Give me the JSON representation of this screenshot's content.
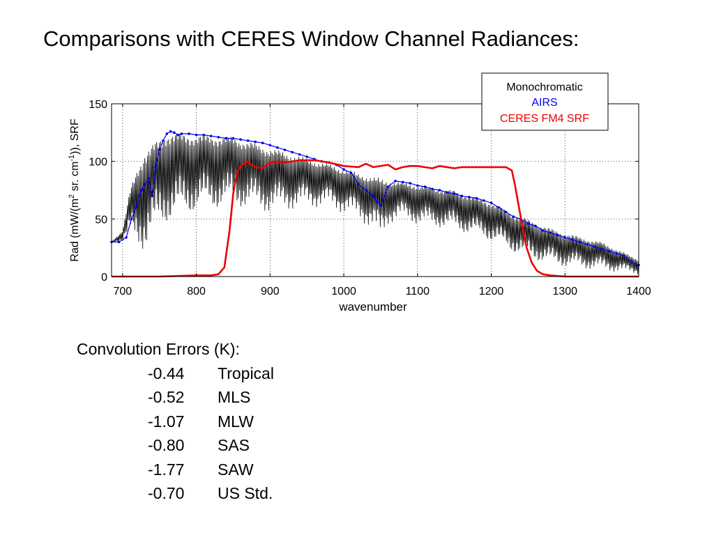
{
  "slide_title": "Comparisons with CERES Window Channel Radiances:",
  "chart_data": {
    "type": "line",
    "title": "",
    "xlabel": "wavenumber",
    "ylabel": "Rad (mW/(m² sr. cm⁻¹)), SRF",
    "xlim": [
      685,
      1400
    ],
    "ylim": [
      0,
      150
    ],
    "xticks": [
      700,
      800,
      900,
      1000,
      1100,
      1200,
      1300,
      1400
    ],
    "yticks": [
      0,
      50,
      100,
      150
    ],
    "grid": true,
    "legend_position": "top-right-outside",
    "series": [
      {
        "name": "Monochromatic",
        "color": "#000000",
        "style": "line-high-frequency",
        "envelope_upper": [
          [
            685,
            30
          ],
          [
            700,
            40
          ],
          [
            710,
            75
          ],
          [
            720,
            95
          ],
          [
            730,
            110
          ],
          [
            740,
            115
          ],
          [
            750,
            120
          ],
          [
            760,
            126
          ],
          [
            770,
            126
          ],
          [
            780,
            125
          ],
          [
            800,
            124
          ],
          [
            850,
            122
          ],
          [
            900,
            112
          ],
          [
            950,
            103
          ],
          [
            980,
            98
          ],
          [
            1000,
            94
          ],
          [
            1020,
            90
          ],
          [
            1040,
            87
          ],
          [
            1060,
            84
          ],
          [
            1080,
            82
          ],
          [
            1100,
            80
          ],
          [
            1150,
            75
          ],
          [
            1200,
            65
          ],
          [
            1230,
            55
          ],
          [
            1250,
            50
          ],
          [
            1280,
            42
          ],
          [
            1300,
            38
          ],
          [
            1350,
            30
          ],
          [
            1400,
            15
          ]
        ],
        "envelope_lower": [
          [
            685,
            30
          ],
          [
            700,
            30
          ],
          [
            710,
            35
          ],
          [
            720,
            25
          ],
          [
            730,
            20
          ],
          [
            740,
            30
          ],
          [
            750,
            40
          ],
          [
            760,
            45
          ],
          [
            780,
            50
          ],
          [
            800,
            55
          ],
          [
            850,
            60
          ],
          [
            900,
            55
          ],
          [
            950,
            60
          ],
          [
            980,
            60
          ],
          [
            1000,
            55
          ],
          [
            1020,
            50
          ],
          [
            1040,
            40
          ],
          [
            1050,
            30
          ],
          [
            1060,
            45
          ],
          [
            1080,
            50
          ],
          [
            1100,
            45
          ],
          [
            1150,
            40
          ],
          [
            1200,
            30
          ],
          [
            1230,
            20
          ],
          [
            1250,
            15
          ],
          [
            1280,
            10
          ],
          [
            1300,
            8
          ],
          [
            1350,
            5
          ],
          [
            1400,
            2
          ]
        ]
      },
      {
        "name": "AIRS",
        "color": "#0000ee",
        "style": "dotted-points",
        "points": [
          [
            685,
            30
          ],
          [
            695,
            30
          ],
          [
            705,
            34
          ],
          [
            712,
            50
          ],
          [
            718,
            60
          ],
          [
            722,
            70
          ],
          [
            726,
            75
          ],
          [
            730,
            80
          ],
          [
            735,
            85
          ],
          [
            740,
            70
          ],
          [
            745,
            95
          ],
          [
            750,
            110
          ],
          [
            755,
            118
          ],
          [
            760,
            124
          ],
          [
            765,
            126
          ],
          [
            770,
            125
          ],
          [
            775,
            123
          ],
          [
            780,
            124
          ],
          [
            790,
            124
          ],
          [
            800,
            123
          ],
          [
            810,
            123
          ],
          [
            820,
            122
          ],
          [
            830,
            121
          ],
          [
            840,
            120
          ],
          [
            850,
            120
          ],
          [
            860,
            119
          ],
          [
            870,
            118
          ],
          [
            880,
            117
          ],
          [
            890,
            116
          ],
          [
            900,
            114
          ],
          [
            910,
            112
          ],
          [
            920,
            110
          ],
          [
            930,
            108
          ],
          [
            940,
            106
          ],
          [
            950,
            104
          ],
          [
            960,
            102
          ],
          [
            970,
            100
          ],
          [
            980,
            99
          ],
          [
            990,
            97
          ],
          [
            1000,
            93
          ],
          [
            1010,
            90
          ],
          [
            1020,
            80
          ],
          [
            1030,
            75
          ],
          [
            1040,
            70
          ],
          [
            1045,
            65
          ],
          [
            1050,
            62
          ],
          [
            1055,
            70
          ],
          [
            1060,
            78
          ],
          [
            1070,
            83
          ],
          [
            1080,
            82
          ],
          [
            1090,
            81
          ],
          [
            1100,
            79
          ],
          [
            1110,
            78
          ],
          [
            1120,
            76
          ],
          [
            1130,
            75
          ],
          [
            1140,
            73
          ],
          [
            1150,
            72
          ],
          [
            1160,
            70
          ],
          [
            1170,
            69
          ],
          [
            1180,
            68
          ],
          [
            1190,
            66
          ],
          [
            1200,
            64
          ],
          [
            1210,
            60
          ],
          [
            1220,
            56
          ],
          [
            1230,
            52
          ],
          [
            1240,
            50
          ],
          [
            1250,
            46
          ],
          [
            1260,
            44
          ],
          [
            1270,
            40
          ],
          [
            1280,
            38
          ],
          [
            1290,
            36
          ],
          [
            1300,
            34
          ],
          [
            1310,
            32
          ],
          [
            1320,
            30
          ],
          [
            1330,
            28
          ],
          [
            1340,
            26
          ],
          [
            1350,
            24
          ],
          [
            1360,
            22
          ],
          [
            1370,
            20
          ],
          [
            1380,
            18
          ],
          [
            1390,
            13
          ],
          [
            1400,
            10
          ]
        ]
      },
      {
        "name": "CERES FM4 SRF",
        "color": "#ee0000",
        "style": "line",
        "points": [
          [
            685,
            0
          ],
          [
            700,
            0
          ],
          [
            750,
            0
          ],
          [
            800,
            1
          ],
          [
            820,
            1
          ],
          [
            830,
            2
          ],
          [
            838,
            8
          ],
          [
            845,
            40
          ],
          [
            850,
            72
          ],
          [
            855,
            90
          ],
          [
            860,
            96
          ],
          [
            868,
            100
          ],
          [
            880,
            95
          ],
          [
            890,
            94
          ],
          [
            900,
            99
          ],
          [
            910,
            100
          ],
          [
            920,
            99
          ],
          [
            940,
            101
          ],
          [
            960,
            101
          ],
          [
            980,
            99
          ],
          [
            1000,
            96
          ],
          [
            1020,
            95
          ],
          [
            1030,
            98
          ],
          [
            1040,
            95
          ],
          [
            1060,
            97
          ],
          [
            1070,
            93
          ],
          [
            1080,
            95
          ],
          [
            1090,
            96
          ],
          [
            1100,
            96
          ],
          [
            1120,
            94
          ],
          [
            1130,
            96
          ],
          [
            1150,
            94
          ],
          [
            1160,
            95
          ],
          [
            1180,
            95
          ],
          [
            1200,
            95
          ],
          [
            1220,
            95
          ],
          [
            1228,
            92
          ],
          [
            1232,
            80
          ],
          [
            1237,
            62
          ],
          [
            1242,
            45
          ],
          [
            1248,
            25
          ],
          [
            1255,
            12
          ],
          [
            1262,
            5
          ],
          [
            1270,
            2
          ],
          [
            1280,
            1
          ],
          [
            1300,
            0
          ],
          [
            1350,
            0
          ],
          [
            1400,
            0
          ]
        ]
      }
    ]
  },
  "legend": {
    "entries": [
      {
        "label": "Monochromatic",
        "color": "#000000"
      },
      {
        "label": "AIRS",
        "color": "#0000ee"
      },
      {
        "label": "CERES FM4 SRF",
        "color": "#ee0000"
      }
    ]
  },
  "errors": {
    "heading": "Convolution Errors (K):",
    "rows": [
      {
        "value": "-0.44",
        "label": "Tropical"
      },
      {
        "value": "-0.52",
        "label": "MLS"
      },
      {
        "value": "-1.07",
        "label": "MLW"
      },
      {
        "value": "-0.80",
        "label": "SAS"
      },
      {
        "value": "-1.77",
        "label": "SAW"
      },
      {
        "value": "-0.70",
        "label": "US Std."
      }
    ]
  }
}
